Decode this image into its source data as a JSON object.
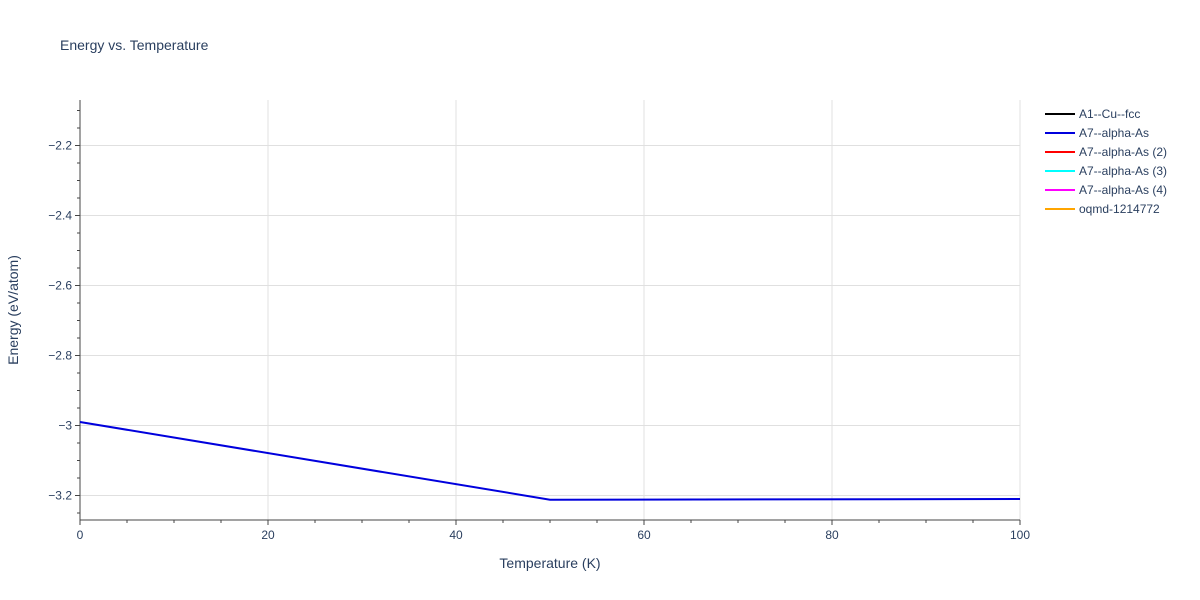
{
  "chart_data": {
    "type": "line",
    "title": "Energy vs. Temperature",
    "xlabel": "Temperature (K)",
    "ylabel": "Energy (eV/atom)",
    "xlim": [
      0,
      100
    ],
    "ylim": [
      -3.27,
      -2.07
    ],
    "x_ticks": [
      0,
      20,
      40,
      60,
      80,
      100
    ],
    "x_tick_labels": [
      "0",
      "20",
      "40",
      "60",
      "80",
      "100"
    ],
    "y_ticks": [
      -2.2,
      -2.4,
      -2.6,
      -2.8,
      -3.0,
      -3.2
    ],
    "y_tick_labels": [
      "−2.2",
      "−2.4",
      "−2.6",
      "−2.8",
      "−3",
      "−3.2"
    ],
    "grid": true,
    "legend_position": "top-right",
    "series": [
      {
        "name": "A1--Cu--fcc",
        "color": "#000000",
        "x": [],
        "y": []
      },
      {
        "name": "A7--alpha-As",
        "color": "#0000dd",
        "x": [
          0,
          50,
          100
        ],
        "y": [
          -2.99,
          -3.212,
          -3.21
        ]
      },
      {
        "name": "A7--alpha-As (2)",
        "color": "#ff0000",
        "x": [],
        "y": []
      },
      {
        "name": "A7--alpha-As (3)",
        "color": "#00ffff",
        "x": [],
        "y": []
      },
      {
        "name": "A7--alpha-As (4)",
        "color": "#ff00ff",
        "x": [],
        "y": []
      },
      {
        "name": "oqmd-1214772",
        "color": "#ffa500",
        "x": [],
        "y": []
      }
    ]
  }
}
